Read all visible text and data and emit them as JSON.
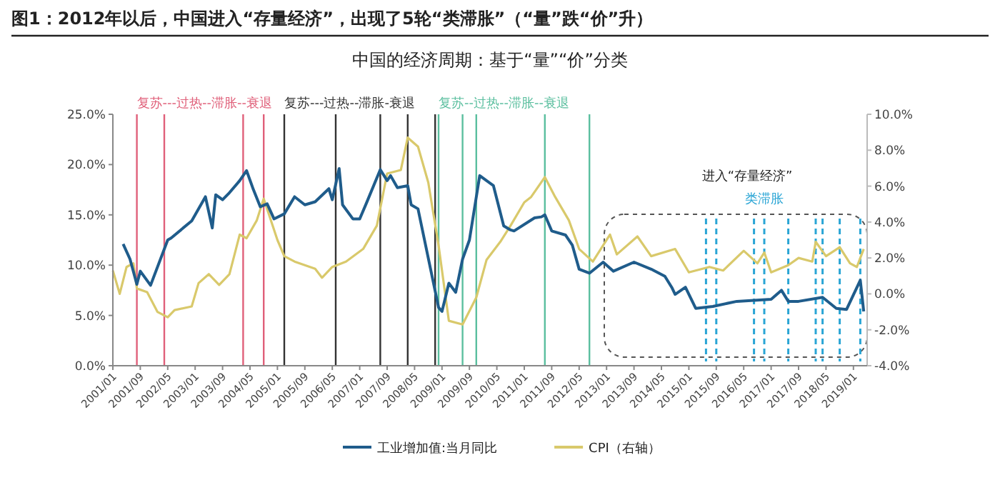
{
  "chart_data": {
    "type": "line",
    "title": "图1：2012年以后，中国进入“存量经济”，出现了5轮“类滞胀”（“量”跌“价”升）",
    "subtitle": "中国的经济周期：基于“量”“价”分类",
    "annotations": [
      "进入“存量经济”"
    ],
    "legend": "bottom",
    "grid": false,
    "line_style": "solid",
    "xlim": [
      "2001-01",
      "2019-05"
    ],
    "xticks": [
      {
        "value": "2001-01",
        "label": "2001/01"
      },
      {
        "value": "2001-09",
        "label": "2001/09"
      },
      {
        "value": "2002-05",
        "label": "2002/05"
      },
      {
        "value": "2003-01",
        "label": "2003/01"
      },
      {
        "value": "2003-09",
        "label": "2003/09"
      },
      {
        "value": "2004-05",
        "label": "2004/05"
      },
      {
        "value": "2005-01",
        "label": "2005/01"
      },
      {
        "value": "2005-09",
        "label": "2005/09"
      },
      {
        "value": "2006-05",
        "label": "2006/05"
      },
      {
        "value": "2007-01",
        "label": "2007/01"
      },
      {
        "value": "2007-09",
        "label": "2007/09"
      },
      {
        "value": "2008-05",
        "label": "2008/05"
      },
      {
        "value": "2009-01",
        "label": "2009/01"
      },
      {
        "value": "2009-09",
        "label": "2009/09"
      },
      {
        "value": "2010-05",
        "label": "2010/05"
      },
      {
        "value": "2011-01",
        "label": "2011/01"
      },
      {
        "value": "2011-09",
        "label": "2011/09"
      },
      {
        "value": "2012-05",
        "label": "2012/05"
      },
      {
        "value": "2013-01",
        "label": "2013/01"
      },
      {
        "value": "2013-09",
        "label": "2013/09"
      },
      {
        "value": "2014-05",
        "label": "2014/05"
      },
      {
        "value": "2015-01",
        "label": "2015/01"
      },
      {
        "value": "2015-09",
        "label": "2015/09"
      },
      {
        "value": "2016-05",
        "label": "2016/05"
      },
      {
        "value": "2017-01",
        "label": "2017/01"
      },
      {
        "value": "2017-09",
        "label": "2017/09"
      },
      {
        "value": "2018-05",
        "label": "2018/05"
      },
      {
        "value": "2019-01",
        "label": "2019/01"
      }
    ],
    "ylim": [
      0,
      25
    ],
    "yticks": [
      {
        "value": 0,
        "label": "0.0%"
      },
      {
        "value": 5,
        "label": "5.0%"
      },
      {
        "value": 10,
        "label": "10.0%"
      },
      {
        "value": 15,
        "label": "15.0%"
      },
      {
        "value": 20,
        "label": "20.0%"
      },
      {
        "value": 25,
        "label": "25.0%"
      }
    ],
    "y2lim": [
      -4,
      10
    ],
    "y2ticks": [
      {
        "value": -4,
        "label": "-4.0%"
      },
      {
        "value": -2,
        "label": "-2.0%"
      },
      {
        "value": 0,
        "label": "0.0%"
      },
      {
        "value": 2,
        "label": "2.0%"
      },
      {
        "value": 4,
        "label": "4.0%"
      },
      {
        "value": 6,
        "label": "6.0%"
      },
      {
        "value": 8,
        "label": "8.0%"
      },
      {
        "value": 10,
        "label": "10.0%"
      }
    ],
    "series": [
      {
        "name": "工业增加值:当月同比",
        "color": "#1f5c8b",
        "x": [
          "2001-04",
          "2001-06",
          "2001-08",
          "2001-09",
          "2001-12",
          "2002-05",
          "2002-06",
          "2002-12",
          "2003-04",
          "2003-06",
          "2003-07",
          "2003-09",
          "2003-11",
          "2004-02",
          "2004-04",
          "2004-06",
          "2004-08",
          "2004-10",
          "2004-12",
          "2005-03",
          "2005-06",
          "2005-09",
          "2005-12",
          "2006-04",
          "2006-05",
          "2006-07",
          "2006-08",
          "2006-11",
          "2007-01",
          "2007-03",
          "2007-07",
          "2007-09",
          "2007-10",
          "2007-12",
          "2008-03",
          "2008-04",
          "2008-06",
          "2008-12",
          "2009-01",
          "2009-03",
          "2009-05",
          "2009-07",
          "2009-09",
          "2009-12",
          "2010-04",
          "2010-07",
          "2010-09",
          "2010-10",
          "2011-04",
          "2011-06",
          "2011-07",
          "2011-09",
          "2012-01",
          "2012-03",
          "2012-05",
          "2012-08",
          "2012-12",
          "2013-03",
          "2013-09",
          "2014-02",
          "2014-06",
          "2014-08",
          "2014-09",
          "2014-12",
          "2015-03",
          "2015-08",
          "2016-03",
          "2017-01",
          "2017-04",
          "2017-06",
          "2017-09",
          "2018-04",
          "2018-08",
          "2018-11",
          "2019-03",
          "2019-04"
        ],
        "values": [
          12.1,
          10.6,
          8.1,
          9.4,
          8.0,
          12.5,
          12.7,
          14.4,
          16.8,
          13.7,
          17.0,
          16.5,
          17.2,
          18.4,
          19.4,
          17.5,
          15.8,
          16.1,
          14.6,
          15.1,
          16.8,
          16.0,
          16.3,
          17.6,
          16.5,
          19.6,
          16.0,
          14.6,
          14.6,
          16.2,
          19.5,
          18.4,
          18.9,
          17.7,
          17.9,
          16.0,
          15.6,
          5.8,
          5.4,
          8.2,
          7.3,
          10.6,
          12.5,
          18.9,
          17.9,
          13.9,
          13.5,
          13.4,
          14.7,
          14.8,
          15.0,
          13.4,
          13.0,
          12.0,
          9.6,
          9.2,
          10.3,
          9.4,
          10.3,
          9.6,
          8.9,
          7.8,
          7.1,
          7.8,
          5.7,
          5.9,
          6.4,
          6.6,
          7.5,
          6.4,
          6.4,
          6.8,
          5.7,
          5.6,
          8.5,
          5.4
        ]
      },
      {
        "name": "CPI（右轴）",
        "color": "#d9c96b",
        "axis": "y2",
        "x": [
          "2001-01",
          "2001-03",
          "2001-05",
          "2001-07",
          "2001-08",
          "2001-11",
          "2002-02",
          "2002-05",
          "2002-07",
          "2002-12",
          "2003-02",
          "2003-05",
          "2003-08",
          "2003-11",
          "2004-02",
          "2004-04",
          "2004-07",
          "2004-09",
          "2005-01",
          "2005-03",
          "2005-06",
          "2005-12",
          "2006-02",
          "2006-05",
          "2006-09",
          "2007-02",
          "2007-06",
          "2007-09",
          "2008-01",
          "2008-03",
          "2008-06",
          "2008-09",
          "2008-12",
          "2009-03",
          "2009-07",
          "2009-11",
          "2010-02",
          "2010-06",
          "2010-09",
          "2011-01",
          "2011-03",
          "2011-07",
          "2011-10",
          "2012-02",
          "2012-05",
          "2012-09",
          "2013-02",
          "2013-04",
          "2013-10",
          "2014-02",
          "2014-09",
          "2015-01",
          "2015-07",
          "2015-11",
          "2016-05",
          "2016-09",
          "2016-11",
          "2017-01",
          "2017-06",
          "2017-09",
          "2018-01",
          "2018-02",
          "2018-05",
          "2018-09",
          "2018-12",
          "2019-02",
          "2019-04"
        ],
        "values": [
          1.3,
          0.0,
          1.5,
          1.7,
          0.3,
          0.1,
          -1.0,
          -1.3,
          -0.9,
          -0.7,
          0.6,
          1.1,
          0.5,
          1.1,
          3.3,
          3.1,
          4.1,
          5.3,
          3.0,
          2.1,
          1.8,
          1.4,
          0.9,
          1.5,
          1.8,
          2.5,
          3.8,
          6.7,
          6.9,
          8.7,
          8.2,
          6.2,
          2.7,
          -1.5,
          -1.7,
          -0.2,
          1.9,
          2.9,
          3.8,
          5.1,
          5.4,
          6.5,
          5.4,
          4.1,
          2.5,
          1.8,
          3.3,
          2.2,
          3.2,
          2.1,
          2.5,
          1.2,
          1.5,
          1.3,
          2.4,
          1.7,
          2.3,
          1.2,
          1.6,
          2.0,
          1.8,
          2.9,
          2.1,
          2.6,
          1.7,
          1.5,
          2.5
        ]
      }
    ],
    "ref_lines": [
      {
        "axis": "x",
        "value": "2001-08",
        "color": "#e0607a",
        "line_style": "solid",
        "label": "复苏---过热--滞胀--衰退"
      },
      {
        "axis": "x",
        "value": "2002-04",
        "color": "#e0607a",
        "line_style": "solid"
      },
      {
        "axis": "x",
        "value": "2004-03",
        "color": "#e0607a",
        "line_style": "solid"
      },
      {
        "axis": "x",
        "value": "2004-09",
        "color": "#e0607a",
        "line_style": "solid"
      },
      {
        "axis": "x",
        "value": "2005-03",
        "color": "#333333",
        "line_style": "solid",
        "label": "复苏---过热--滞胀-衰退"
      },
      {
        "axis": "x",
        "value": "2006-06",
        "color": "#333333",
        "line_style": "solid"
      },
      {
        "axis": "x",
        "value": "2007-07",
        "color": "#333333",
        "line_style": "solid"
      },
      {
        "axis": "x",
        "value": "2008-03",
        "color": "#333333",
        "line_style": "solid"
      },
      {
        "axis": "x",
        "value": "2008-11",
        "color": "#333333",
        "line_style": "solid"
      },
      {
        "axis": "x",
        "value": "2008-12",
        "color": "#5bbf9f",
        "line_style": "solid",
        "label": "复苏--过热--滞胀--衰退"
      },
      {
        "axis": "x",
        "value": "2009-07",
        "color": "#5bbf9f",
        "line_style": "solid"
      },
      {
        "axis": "x",
        "value": "2009-11",
        "color": "#5bbf9f",
        "line_style": "solid"
      },
      {
        "axis": "x",
        "value": "2011-07",
        "color": "#5bbf9f",
        "line_style": "solid"
      },
      {
        "axis": "x",
        "value": "2012-08",
        "color": "#5bbf9f",
        "line_style": "solid"
      },
      {
        "axis": "x",
        "value": "2015-06",
        "color": "#2aa5d5",
        "line_style": "dashed"
      },
      {
        "axis": "x",
        "value": "2015-09",
        "color": "#2aa5d5",
        "line_style": "dashed"
      },
      {
        "axis": "x",
        "value": "2016-08",
        "color": "#2aa5d5",
        "line_style": "dashed"
      },
      {
        "axis": "x",
        "value": "2016-11",
        "color": "#2aa5d5",
        "line_style": "dashed",
        "label": "类滞胀"
      },
      {
        "axis": "x",
        "value": "2017-06",
        "color": "#2aa5d5",
        "line_style": "dashed"
      },
      {
        "axis": "x",
        "value": "2018-02",
        "color": "#2aa5d5",
        "line_style": "dashed"
      },
      {
        "axis": "x",
        "value": "2018-04",
        "color": "#2aa5d5",
        "line_style": "dashed"
      },
      {
        "axis": "x",
        "value": "2018-09",
        "color": "#2aa5d5",
        "line_style": "dashed"
      },
      {
        "axis": "x",
        "value": "2019-03",
        "color": "#2aa5d5",
        "line_style": "dashed"
      }
    ]
  }
}
